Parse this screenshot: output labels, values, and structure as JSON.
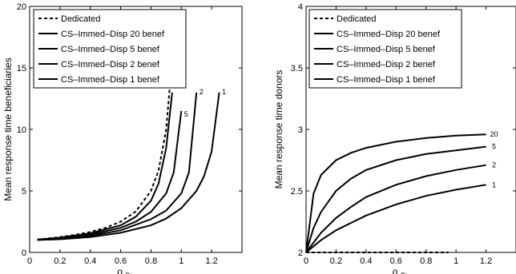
{
  "chart_data": [
    {
      "type": "line",
      "xlabel": "ρ",
      "xlabel_sub": "Bi",
      "ylabel": "Mean response time beneficiaries",
      "xlim": [
        0,
        1.4
      ],
      "ylim": [
        0,
        20
      ],
      "xticks": [
        "0",
        "0.2",
        "0.4",
        "0.6",
        "0.8",
        "1",
        "1.2"
      ],
      "yticks": [
        "0",
        "5",
        "10",
        "15",
        "20"
      ],
      "grid": false,
      "legend_position": "top-left",
      "series": [
        {
          "name": "Dedicated",
          "style": "dashed",
          "curve_label": "",
          "points": [
            [
              0.05,
              1.05
            ],
            [
              0.1,
              1.11
            ],
            [
              0.2,
              1.25
            ],
            [
              0.3,
              1.43
            ],
            [
              0.4,
              1.67
            ],
            [
              0.5,
              2.0
            ],
            [
              0.6,
              2.5
            ],
            [
              0.7,
              3.33
            ],
            [
              0.8,
              5.0
            ],
            [
              0.85,
              6.67
            ],
            [
              0.9,
              10.0
            ],
            [
              0.93,
              14.3
            ]
          ]
        },
        {
          "name": "CS–Immed–Disp 20 benef",
          "style": "solid",
          "curve_label": "",
          "points": [
            [
              0.05,
              1.03
            ],
            [
              0.2,
              1.2
            ],
            [
              0.4,
              1.55
            ],
            [
              0.6,
              2.2
            ],
            [
              0.7,
              2.9
            ],
            [
              0.8,
              4.2
            ],
            [
              0.85,
              5.6
            ],
            [
              0.9,
              8.5
            ],
            [
              0.94,
              13.0
            ]
          ]
        },
        {
          "name": "CS–Immed–Disp 5 benef",
          "style": "solid",
          "curve_label": "5",
          "points": [
            [
              0.05,
              1.03
            ],
            [
              0.2,
              1.15
            ],
            [
              0.4,
              1.45
            ],
            [
              0.6,
              2.0
            ],
            [
              0.7,
              2.5
            ],
            [
              0.8,
              3.3
            ],
            [
              0.9,
              4.8
            ],
            [
              0.95,
              6.5
            ],
            [
              1.0,
              11.5
            ]
          ]
        },
        {
          "name": "CS–Immed–Disp 2 benef",
          "style": "solid",
          "curve_label": "2",
          "points": [
            [
              0.05,
              1.02
            ],
            [
              0.2,
              1.1
            ],
            [
              0.4,
              1.35
            ],
            [
              0.6,
              1.8
            ],
            [
              0.8,
              2.7
            ],
            [
              0.9,
              3.4
            ],
            [
              1.0,
              4.8
            ],
            [
              1.05,
              6.5
            ],
            [
              1.1,
              13.0
            ]
          ]
        },
        {
          "name": "CS–Immed–Disp 1 benef",
          "style": "solid",
          "curve_label": "1",
          "points": [
            [
              0.05,
              1.01
            ],
            [
              0.2,
              1.07
            ],
            [
              0.4,
              1.25
            ],
            [
              0.6,
              1.6
            ],
            [
              0.8,
              2.2
            ],
            [
              0.9,
              2.75
            ],
            [
              1.0,
              3.6
            ],
            [
              1.1,
              5.0
            ],
            [
              1.15,
              6.2
            ],
            [
              1.2,
              8.2
            ],
            [
              1.25,
              13.0
            ]
          ]
        }
      ]
    },
    {
      "type": "line",
      "xlabel": "ρ",
      "xlabel_sub": "Bi",
      "ylabel": "Mean response time donors",
      "xlim": [
        0,
        1.4
      ],
      "ylim": [
        2,
        4
      ],
      "xticks": [
        "0",
        "0.2",
        "0.4",
        "0.6",
        "0.8",
        "1",
        "1.2"
      ],
      "yticks": [
        "2",
        "2.5",
        "3",
        "3.5",
        "4"
      ],
      "grid": false,
      "legend_position": "top-left",
      "series": [
        {
          "name": "Dedicated",
          "style": "dashed",
          "curve_label": "",
          "points": [
            [
              0,
              2.0
            ],
            [
              0.95,
              2.0
            ]
          ]
        },
        {
          "name": "CS–Immed–Disp 20 benef",
          "style": "solid",
          "curve_label": "20",
          "points": [
            [
              0,
              2.0
            ],
            [
              0.05,
              2.48
            ],
            [
              0.1,
              2.63
            ],
            [
              0.2,
              2.75
            ],
            [
              0.3,
              2.81
            ],
            [
              0.4,
              2.85
            ],
            [
              0.6,
              2.9
            ],
            [
              0.8,
              2.93
            ],
            [
              1.0,
              2.95
            ],
            [
              1.2,
              2.96
            ]
          ]
        },
        {
          "name": "CS–Immed–Disp 5 benef",
          "style": "solid",
          "curve_label": "5",
          "points": [
            [
              0,
              2.0
            ],
            [
              0.05,
              2.2
            ],
            [
              0.1,
              2.33
            ],
            [
              0.2,
              2.5
            ],
            [
              0.3,
              2.6
            ],
            [
              0.4,
              2.67
            ],
            [
              0.6,
              2.75
            ],
            [
              0.8,
              2.8
            ],
            [
              1.0,
              2.83
            ],
            [
              1.2,
              2.86
            ]
          ]
        },
        {
          "name": "CS–Immed–Disp 2 benef",
          "style": "solid",
          "curve_label": "2",
          "points": [
            [
              0,
              2.0
            ],
            [
              0.1,
              2.16
            ],
            [
              0.2,
              2.28
            ],
            [
              0.3,
              2.37
            ],
            [
              0.4,
              2.45
            ],
            [
              0.6,
              2.55
            ],
            [
              0.8,
              2.62
            ],
            [
              1.0,
              2.67
            ],
            [
              1.2,
              2.71
            ]
          ]
        },
        {
          "name": "CS–Immed–Disp 1 benef",
          "style": "solid",
          "curve_label": "1",
          "points": [
            [
              0,
              2.0
            ],
            [
              0.1,
              2.1
            ],
            [
              0.2,
              2.18
            ],
            [
              0.3,
              2.24
            ],
            [
              0.4,
              2.3
            ],
            [
              0.6,
              2.39
            ],
            [
              0.8,
              2.46
            ],
            [
              1.0,
              2.51
            ],
            [
              1.2,
              2.55
            ]
          ]
        }
      ]
    }
  ]
}
